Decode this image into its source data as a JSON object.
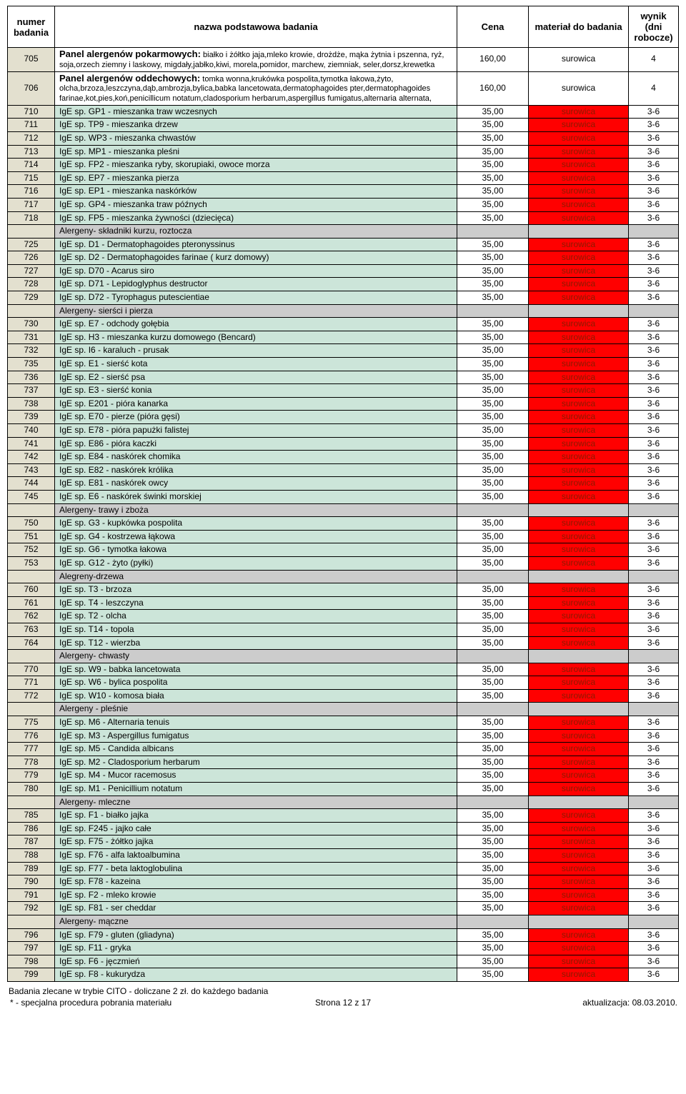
{
  "headers": {
    "num": "numer badania",
    "name": "nazwa podstawowa badania",
    "price": "Cena",
    "material": "materiał do badania",
    "days": "wynik (dni robocze)"
  },
  "rows": [
    {
      "type": "panel",
      "num": "705",
      "nameBold": "Panel alergenów pokarmowych:",
      "nameRest": " białko i żółtko jaja,mleko krowie, drożdże, mąka żytnia i pszenna, ryż, soja,orzech ziemny i laskowy, migdały,jabłko,kiwi, morela,pomidor, marchew, ziemniak, seler,dorsz,krewetka",
      "price": "160,00",
      "material": "surowica",
      "materialPlain": true,
      "days": "4"
    },
    {
      "type": "panel",
      "num": "706",
      "nameBold": "Panel alergenów oddechowych:",
      "nameRest": " tomka wonna,krukówka pospolita,tymotka łakowa,żyto, olcha,brzoza,leszczyna,dąb,ambrozja,bylica,babka lancetowata,dermatophagoides pter,dermatophagoides farinae,kot,pies,koń,penicillicum notatum,cladosporium herbarum,aspergillus fumigatus,alternaria alternata,",
      "price": "160,00",
      "material": "surowica",
      "materialPlain": true,
      "days": "4"
    },
    {
      "type": "data",
      "num": "710",
      "name": "IgE sp. GP1 - mieszanka traw wczesnych",
      "price": "35,00",
      "material": "surowica",
      "days": "3-6"
    },
    {
      "type": "data",
      "num": "711",
      "name": "IgE sp. TP9 - mieszanka drzew",
      "price": "35,00",
      "material": "surowica",
      "days": "3-6"
    },
    {
      "type": "data",
      "num": "712",
      "name": "IgE sp. WP3 - mieszanka chwastów",
      "price": "35,00",
      "material": "surowica",
      "days": "3-6"
    },
    {
      "type": "data",
      "num": "713",
      "name": "IgE sp. MP1 - mieszanka pleśni",
      "price": "35,00",
      "material": "surowica",
      "days": "3-6"
    },
    {
      "type": "data",
      "num": "714",
      "name": "IgE sp. FP2 - mieszanka ryby, skorupiaki, owoce morza",
      "price": "35,00",
      "material": "surowica",
      "days": "3-6"
    },
    {
      "type": "data",
      "num": "715",
      "name": "IgE sp. EP7 - mieszanka pierza",
      "price": "35,00",
      "material": "surowica",
      "days": "3-6"
    },
    {
      "type": "data",
      "num": "716",
      "name": "IgE sp. EP1 - mieszanka naskórków",
      "price": "35,00",
      "material": "surowica",
      "days": "3-6"
    },
    {
      "type": "data",
      "num": "717",
      "name": "IgE sp. GP4 - mieszanka traw późnych",
      "price": "35,00",
      "material": "surowica",
      "days": "3-6"
    },
    {
      "type": "data",
      "num": "718",
      "name": "IgE sp. FP5 - mieszanka żywności (dziecięca)",
      "price": "35,00",
      "material": "surowica",
      "days": "3-6"
    },
    {
      "type": "section",
      "name": "Alergeny- składniki kurzu, roztocza"
    },
    {
      "type": "data",
      "num": "725",
      "name": "IgE sp. D1 - Dermatophagoides pteronyssinus",
      "price": "35,00",
      "material": "surowica",
      "days": "3-6"
    },
    {
      "type": "data",
      "num": "726",
      "name": "IgE sp. D2 - Dermatophagoides farinae ( kurz domowy)",
      "price": "35,00",
      "material": "surowica",
      "days": "3-6"
    },
    {
      "type": "data",
      "num": "727",
      "name": "IgE sp. D70 - Acarus siro",
      "price": "35,00",
      "material": "surowica",
      "days": "3-6"
    },
    {
      "type": "data",
      "num": "728",
      "name": "IgE sp. D71 - Lepidoglyphus destructor",
      "price": "35,00",
      "material": "surowica",
      "days": "3-6"
    },
    {
      "type": "data",
      "num": "729",
      "name": "IgE sp. D72 - Tyrophagus putescientiae",
      "price": "35,00",
      "material": "surowica",
      "days": "3-6"
    },
    {
      "type": "section",
      "name": "Alergeny- sierści i pierza"
    },
    {
      "type": "data",
      "num": "730",
      "name": "IgE sp. E7 - odchody gołębia",
      "price": "35,00",
      "material": "surowica",
      "days": "3-6"
    },
    {
      "type": "data",
      "num": "731",
      "name": "IgE sp. H3 - mieszanka kurzu domowego (Bencard)",
      "price": "35,00",
      "material": "surowica",
      "days": "3-6"
    },
    {
      "type": "data",
      "num": "732",
      "name": "IgE sp. I6 - karaluch - prusak",
      "price": "35,00",
      "material": "surowica",
      "days": "3-6"
    },
    {
      "type": "data",
      "num": "735",
      "name": "IgE sp. E1 - sierść kota",
      "price": "35,00",
      "material": "surowica",
      "days": "3-6"
    },
    {
      "type": "data",
      "num": "736",
      "name": "IgE sp. E2 - sierść psa",
      "price": "35,00",
      "material": "surowica",
      "days": "3-6"
    },
    {
      "type": "data",
      "num": "737",
      "name": "IgE sp. E3 - sierść konia",
      "price": "35,00",
      "material": "surowica",
      "days": "3-6"
    },
    {
      "type": "data",
      "num": "738",
      "name": "IgE sp. E201 - pióra kanarka",
      "price": "35,00",
      "material": "surowica",
      "days": "3-6"
    },
    {
      "type": "data",
      "num": "739",
      "name": "IgE sp. E70 - pierze (pióra gęsi)",
      "price": "35,00",
      "material": "surowica",
      "days": "3-6"
    },
    {
      "type": "data",
      "num": "740",
      "name": "IgE sp. E78 - pióra papużki falistej",
      "price": "35,00",
      "material": "surowica",
      "days": "3-6"
    },
    {
      "type": "data",
      "num": "741",
      "name": "IgE sp. E86 - pióra kaczki",
      "price": "35,00",
      "material": "surowica",
      "days": "3-6"
    },
    {
      "type": "data",
      "num": "742",
      "name": "IgE sp. E84 - naskórek chomika",
      "price": "35,00",
      "material": "surowica",
      "days": "3-6"
    },
    {
      "type": "data",
      "num": "743",
      "name": "IgE sp. E82 - naskórek królika",
      "price": "35,00",
      "material": "surowica",
      "days": "3-6"
    },
    {
      "type": "data",
      "num": "744",
      "name": "IgE sp. E81 - naskórek owcy",
      "price": "35,00",
      "material": "surowica",
      "days": "3-6"
    },
    {
      "type": "data",
      "num": "745",
      "name": "IgE sp. E6 - naskórek świnki morskiej",
      "price": "35,00",
      "material": "surowica",
      "days": "3-6"
    },
    {
      "type": "section",
      "name": "Alergeny- trawy i zboża"
    },
    {
      "type": "data",
      "num": "750",
      "name": "IgE sp. G3 - kupkówka pospolita",
      "price": "35,00",
      "material": "surowica",
      "days": "3-6"
    },
    {
      "type": "data",
      "num": "751",
      "name": "IgE sp. G4 - kostrzewa łąkowa",
      "price": "35,00",
      "material": "surowica",
      "days": "3-6"
    },
    {
      "type": "data",
      "num": "752",
      "name": "IgE sp. G6 - tymotka łakowa",
      "price": "35,00",
      "material": "surowica",
      "days": "3-6"
    },
    {
      "type": "data",
      "num": "753",
      "name": "IgE sp. G12 - żyto (pyłki)",
      "price": "35,00",
      "material": "surowica",
      "days": "3-6"
    },
    {
      "type": "section",
      "name": "Alegreny-drzewa"
    },
    {
      "type": "data",
      "num": "760",
      "name": "IgE sp. T3 - brzoza",
      "price": "35,00",
      "material": "surowica",
      "days": "3-6"
    },
    {
      "type": "data",
      "num": "761",
      "name": "IgE sp. T4 - leszczyna",
      "price": "35,00",
      "material": "surowica",
      "days": "3-6"
    },
    {
      "type": "data",
      "num": "762",
      "name": "IgE sp. T2 - olcha",
      "price": "35,00",
      "material": "surowica",
      "days": "3-6"
    },
    {
      "type": "data",
      "num": "763",
      "name": "IgE sp. T14 - topola",
      "price": "35,00",
      "material": "surowica",
      "days": "3-6"
    },
    {
      "type": "data",
      "num": "764",
      "name": "IgE sp. T12 - wierzba",
      "price": "35,00",
      "material": "surowica",
      "days": "3-6"
    },
    {
      "type": "section",
      "name": "Alergeny- chwasty"
    },
    {
      "type": "data",
      "num": "770",
      "name": "IgE sp. W9 - babka lancetowata",
      "price": "35,00",
      "material": "surowica",
      "days": "3-6"
    },
    {
      "type": "data",
      "num": "771",
      "name": "IgE sp. W6 - bylica pospolita",
      "price": "35,00",
      "material": "surowica",
      "days": "3-6"
    },
    {
      "type": "data",
      "num": "772",
      "name": "IgE sp. W10 - komosa biała",
      "price": "35,00",
      "material": "surowica",
      "days": "3-6"
    },
    {
      "type": "section",
      "name": "Alergeny - pleśnie"
    },
    {
      "type": "data",
      "num": "775",
      "name": "IgE sp. M6 - Alternaria tenuis",
      "price": "35,00",
      "material": "surowica",
      "days": "3-6"
    },
    {
      "type": "data",
      "num": "776",
      "name": "IgE sp. M3 - Aspergillus fumigatus",
      "price": "35,00",
      "material": "surowica",
      "days": "3-6"
    },
    {
      "type": "data",
      "num": "777",
      "name": "IgE sp. M5 - Candida albicans",
      "price": "35,00",
      "material": "surowica",
      "days": "3-6"
    },
    {
      "type": "data",
      "num": "778",
      "name": "IgE sp. M2 - Cladosporium herbarum",
      "price": "35,00",
      "material": "surowica",
      "days": "3-6"
    },
    {
      "type": "data",
      "num": "779",
      "name": "IgE sp. M4 - Mucor racemosus",
      "price": "35,00",
      "material": "surowica",
      "days": "3-6"
    },
    {
      "type": "data",
      "num": "780",
      "name": "IgE sp. M1 - Penicillium notatum",
      "price": "35,00",
      "material": "surowica",
      "days": "3-6"
    },
    {
      "type": "section",
      "name": "Alergeny- mleczne"
    },
    {
      "type": "data",
      "num": "785",
      "name": "IgE sp. F1 - białko jajka",
      "price": "35,00",
      "material": "surowica",
      "days": "3-6"
    },
    {
      "type": "data",
      "num": "786",
      "name": "IgE sp. F245 - jajko całe",
      "price": "35,00",
      "material": "surowica",
      "days": "3-6"
    },
    {
      "type": "data",
      "num": "787",
      "name": "IgE sp. F75 - żółtko jajka",
      "price": "35,00",
      "material": "surowica",
      "days": "3-6"
    },
    {
      "type": "data",
      "num": "788",
      "name": "IgE sp. F76 - alfa laktoalbumina",
      "price": "35,00",
      "material": "surowica",
      "days": "3-6"
    },
    {
      "type": "data",
      "num": "789",
      "name": "IgE sp. F77 - beta laktoglobulina",
      "price": "35,00",
      "material": "surowica",
      "days": "3-6"
    },
    {
      "type": "data",
      "num": "790",
      "name": "IgE sp. F78 - kazeina",
      "price": "35,00",
      "material": "surowica",
      "days": "3-6"
    },
    {
      "type": "data",
      "num": "791",
      "name": "IgE sp. F2 - mleko krowie",
      "price": "35,00",
      "material": "surowica",
      "days": "3-6"
    },
    {
      "type": "data",
      "num": "792",
      "name": "IgE sp. F81 - ser cheddar",
      "price": "35,00",
      "material": "surowica",
      "days": "3-6"
    },
    {
      "type": "section",
      "name": "Alergeny- mączne"
    },
    {
      "type": "data",
      "num": "796",
      "name": "IgE sp. F79 - gluten (gliadyna)",
      "price": "35,00",
      "material": "surowica",
      "days": "3-6"
    },
    {
      "type": "data",
      "num": "797",
      "name": "IgE sp. F11 - gryka",
      "price": "35,00",
      "material": "surowica",
      "days": "3-6"
    },
    {
      "type": "data",
      "num": "798",
      "name": "IgE sp. F6 - jęczmień",
      "price": "35,00",
      "material": "surowica",
      "days": "3-6"
    },
    {
      "type": "data",
      "num": "799",
      "name": "IgE sp. F8 - kukurydza",
      "price": "35,00",
      "material": "surowica",
      "days": "3-6"
    }
  ],
  "footer": {
    "note1": "Badania zlecane w trybie CITO - doliczane 2 zł. do każdego badania",
    "note2": "* - specjalna procedura pobrania materiału",
    "page": "Strona 12 z 17",
    "update": "aktualizacja: 08.03.2010."
  }
}
